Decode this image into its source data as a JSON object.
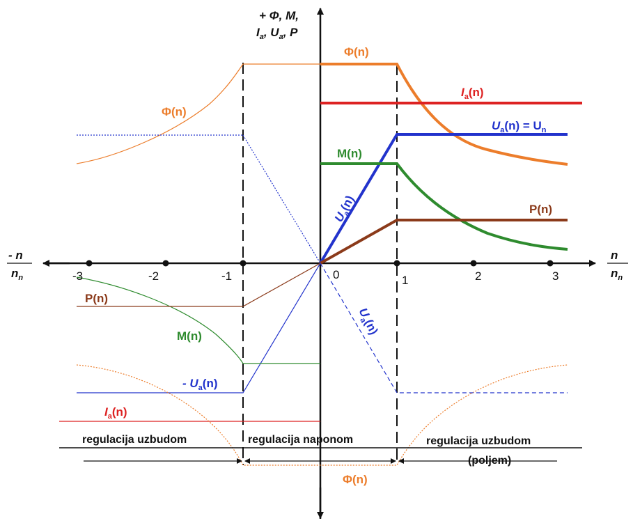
{
  "colors": {
    "phi": "#ec7d2b",
    "ia": "#dd2222",
    "ua": "#2233cc",
    "m": "#2e8b2e",
    "p": "#8b3a1a",
    "axis": "#111111"
  },
  "axes": {
    "y_label_1": "+ Φ, M,",
    "y_label_2": "I",
    "y_label_2_sub": "a",
    "y_label_3": ", U",
    "y_label_3_sub": "a",
    "y_label_4": ", P",
    "x_pos_num": "n",
    "x_pos_den": "n",
    "x_pos_den_sub": "n",
    "x_neg_num": "- n",
    "x_neg_den": "n",
    "x_neg_den_sub": "n",
    "ticks_pos": [
      "0",
      "1",
      "2",
      "3"
    ],
    "ticks_neg": [
      "-1",
      "-2",
      "-3"
    ]
  },
  "labels": {
    "phi_top": "Φ(n)",
    "phi_left": "Φ(n)",
    "phi_bottom": "Φ(n)",
    "ia_right_main": "I",
    "ia_right_sub": "a",
    "ia_right_tail": "(n)",
    "ua_right_main": "U",
    "ua_right_sub": "a",
    "ua_right_mid": "(n) = U",
    "ua_right_sub2": "n",
    "m_right": "M(n)",
    "ua_diag_main": "U",
    "ua_diag_sub": "a",
    "ua_diag_tail": "(n)",
    "p_right": "P(n)",
    "p_left": "P(n)",
    "m_left": "M(n)",
    "ua_neg_prefix": "- U",
    "ua_neg_sub": "a",
    "ua_neg_tail": "(n)",
    "ia_left_main": "I",
    "ia_left_sub": "a",
    "ia_left_tail": "(n)",
    "ua_down_main": "U",
    "ua_down_sub": "a",
    "ua_down_tail": "(n)"
  },
  "regions": {
    "left": "regulacija uzbudom",
    "middle": "regulacija naponom",
    "right_line1": "regulacija uzbudom",
    "right_line2": "(poljem)"
  }
}
